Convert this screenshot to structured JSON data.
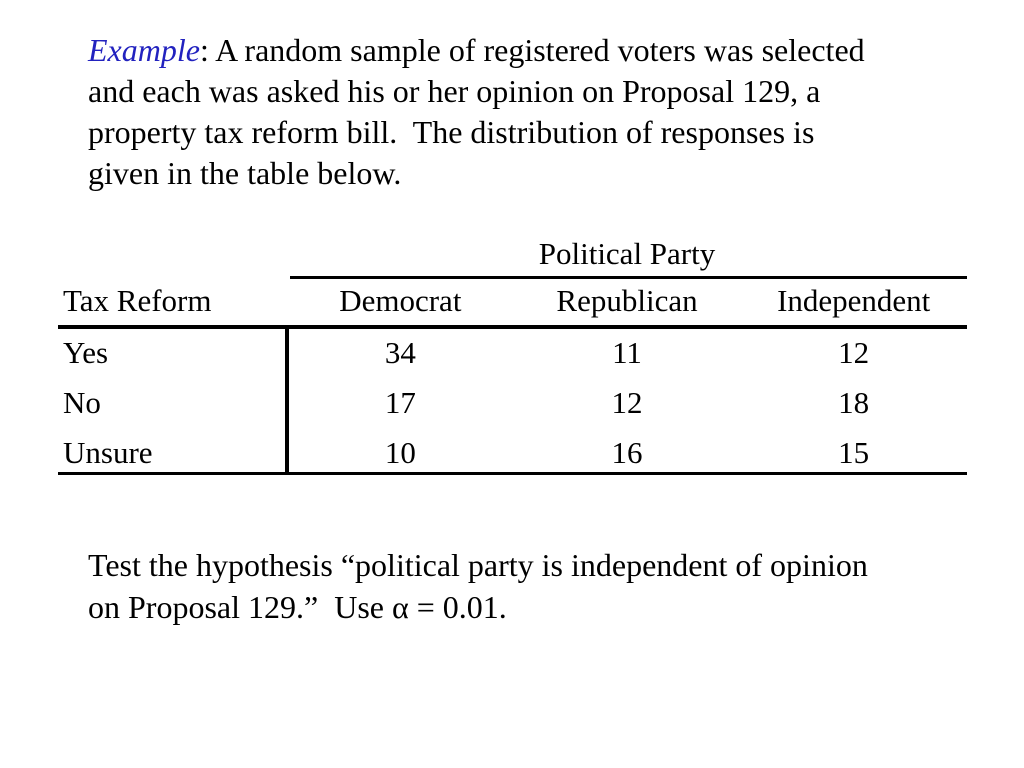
{
  "colors": {
    "background": "#ffffff",
    "text": "#000000",
    "example_blue": "#2222bf"
  },
  "intro": {
    "example_label": "Example",
    "line1_rest": ": A random sample of registered voters was selected",
    "line2": "and each was asked his or her opinion on Proposal 129, a",
    "line3": "property tax reform bill.  The distribution of responses is",
    "line4": "given in the table below."
  },
  "table": {
    "spanning_header": "Political Party",
    "row_header_label": "Tax Reform",
    "columns": [
      "Democrat",
      "Republican",
      "Independent"
    ],
    "rows": [
      {
        "label": "Yes",
        "values": [
          "34",
          "11",
          "12"
        ]
      },
      {
        "label": "No",
        "values": [
          "17",
          "12",
          "18"
        ]
      },
      {
        "label": "Unsure",
        "values": [
          "10",
          "16",
          "15"
        ]
      }
    ]
  },
  "task": {
    "line1": "Test the hypothesis “political party is independent of opinion",
    "line2": "on Proposal 129.”  Use α = 0.01."
  }
}
